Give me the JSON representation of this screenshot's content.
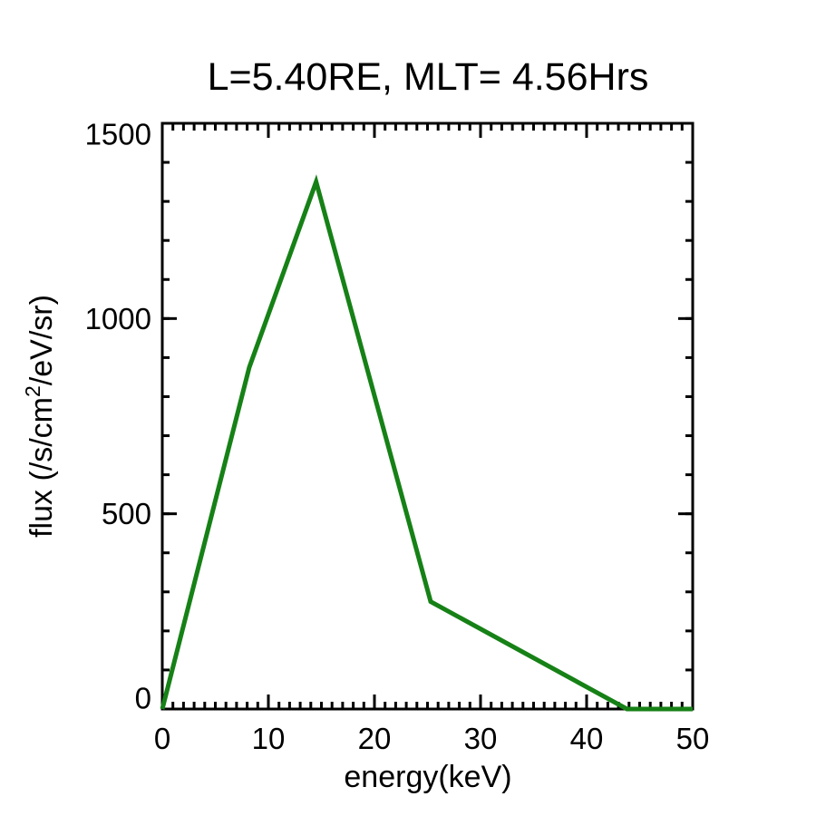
{
  "title": "L=5.40RE, MLT= 4.56Hrs",
  "colors": {
    "background": "#ffffff",
    "axis": "#000000",
    "text": "#000000",
    "line": "#168116"
  },
  "chart_data": {
    "type": "line",
    "title": "L=5.40RE, MLT= 4.56Hrs",
    "xlabel": "energy(keV)",
    "ylabel": "flux (/s/cm2/eV/sr)",
    "ylabel_pre": "flux (/s/cm",
    "ylabel_sup": "2",
    "ylabel_post": "/eV/sr)",
    "x": [
      0,
      8.2,
      14.5,
      25.3,
      43.8,
      50
    ],
    "y": [
      0,
      875,
      1350,
      275,
      0,
      0
    ],
    "xlim": [
      0,
      50
    ],
    "ylim": [
      0,
      1500
    ],
    "xticks": [
      0,
      10,
      20,
      30,
      40,
      50
    ],
    "xtick_labels": [
      "0",
      "10",
      "20",
      "30",
      "40",
      "50"
    ],
    "yticks": [
      0,
      500,
      1000,
      1500
    ],
    "ytick_labels": [
      "0",
      "500",
      "1000",
      "1500"
    ],
    "x_minor_step": 1,
    "y_minor_step": 100,
    "grid": false,
    "legend": null,
    "line_color": "#168116",
    "line_width": 5
  }
}
